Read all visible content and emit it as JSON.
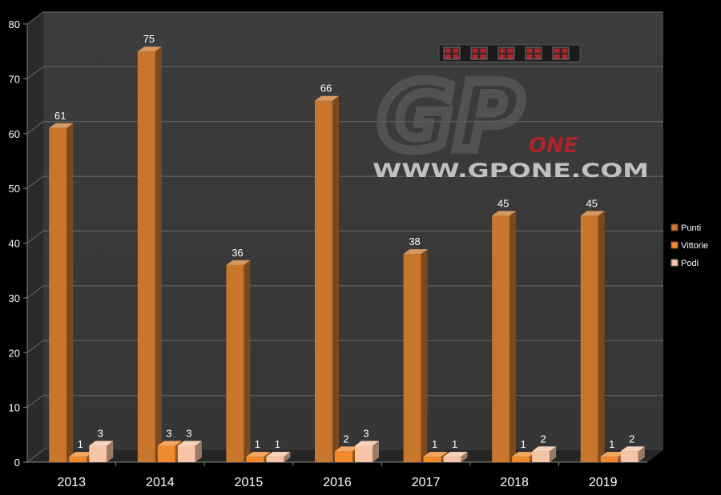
{
  "chart_data": {
    "type": "bar",
    "title": "",
    "xlabel": "",
    "ylabel": "",
    "categories": [
      "2013",
      "2014",
      "2015",
      "2016",
      "2017",
      "2018",
      "2019"
    ],
    "series": [
      {
        "name": "Punti",
        "values": [
          61,
          75,
          36,
          66,
          38,
          45,
          45
        ],
        "color": "#c7762b"
      },
      {
        "name": "Vittorie",
        "values": [
          1,
          3,
          1,
          2,
          1,
          1,
          1
        ],
        "color": "#f08a2c"
      },
      {
        "name": "Podi",
        "values": [
          3,
          3,
          1,
          3,
          1,
          2,
          2
        ],
        "color": "#f6c4a6"
      }
    ],
    "ylim": [
      0,
      80
    ],
    "yticks": [
      0,
      10,
      20,
      30,
      40,
      50,
      60,
      70,
      80
    ],
    "grid": true,
    "legend_position": "right",
    "background": "#3a3a3a",
    "watermark": {
      "logo_text": "GP",
      "logo_sub": "ONE",
      "url": "WWW.GPONE.COM"
    }
  }
}
